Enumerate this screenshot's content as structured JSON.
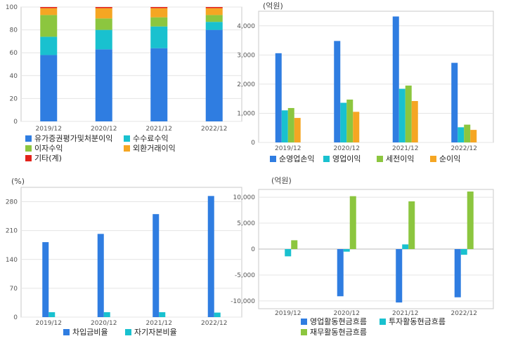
{
  "chart_data": [
    {
      "type": "bar",
      "stacked": true,
      "categories": [
        "2019/12",
        "2020/12",
        "2021/12",
        "2022/12"
      ],
      "ylim": [
        0,
        100
      ],
      "yticks": [
        "0",
        "20",
        "40",
        "60",
        "80",
        "100"
      ],
      "unit": "",
      "series": [
        {
          "name": "유가증권평가및처분이익",
          "color": "#2f7de1",
          "values": [
            58,
            63,
            64,
            80
          ]
        },
        {
          "name": "수수료수익",
          "color": "#19c1cf",
          "values": [
            16,
            17,
            19,
            7
          ]
        },
        {
          "name": "이자수익",
          "color": "#8cc63f",
          "values": [
            19,
            10,
            8,
            6
          ]
        },
        {
          "name": "외환거래이익",
          "color": "#f5a623",
          "values": [
            6,
            9,
            8,
            6
          ]
        },
        {
          "name": "기타(계)",
          "color": "#e2231a",
          "values": [
            1,
            1,
            1,
            1
          ]
        }
      ]
    },
    {
      "type": "bar",
      "categories": [
        "2019/12",
        "2020/12",
        "2021/12",
        "2022/12"
      ],
      "ylim": [
        0,
        4500
      ],
      "yticks": [
        "0",
        "1,000",
        "2,000",
        "3,000",
        "4,000"
      ],
      "unit": "(억원)",
      "series": [
        {
          "name": "순영업손익",
          "color": "#2f7de1",
          "values": [
            3060,
            3480,
            4320,
            2730
          ]
        },
        {
          "name": "영업이익",
          "color": "#19c1cf",
          "values": [
            1100,
            1360,
            1840,
            520
          ]
        },
        {
          "name": "세전이익",
          "color": "#8cc63f",
          "values": [
            1180,
            1470,
            1950,
            610
          ]
        },
        {
          "name": "순이익",
          "color": "#f5a623",
          "values": [
            840,
            1050,
            1420,
            430
          ]
        }
      ]
    },
    {
      "type": "bar",
      "categories": [
        "2019/12",
        "2020/12",
        "2021/12",
        "2022/12"
      ],
      "ylim": [
        0,
        315
      ],
      "yticks": [
        "0",
        "70",
        "140",
        "210",
        "280"
      ],
      "unit": "(%)",
      "series": [
        {
          "name": "차입금비율",
          "color": "#2f7de1",
          "values": [
            182,
            202,
            250,
            294
          ]
        },
        {
          "name": "자기자본비율",
          "color": "#19c1cf",
          "values": [
            12,
            12,
            12,
            11
          ]
        }
      ]
    },
    {
      "type": "bar",
      "categories": [
        "2019/12",
        "2020/12",
        "2021/12",
        "2022/12"
      ],
      "ylim": [
        -11500,
        11500
      ],
      "yticks": [
        "-10,000",
        "-5,000",
        "0",
        "5,000",
        "10,000"
      ],
      "unit": "(억원)",
      "series": [
        {
          "name": "영업활동현금흐름",
          "color": "#2f7de1",
          "values": [
            0,
            -9100,
            -10300,
            -9300
          ]
        },
        {
          "name": "투자활동현금흐름",
          "color": "#19c1cf",
          "values": [
            -1400,
            -500,
            900,
            -1100
          ]
        },
        {
          "name": "재무활동현금흐름",
          "color": "#8cc63f",
          "values": [
            1700,
            10200,
            9200,
            11100
          ]
        }
      ]
    }
  ]
}
